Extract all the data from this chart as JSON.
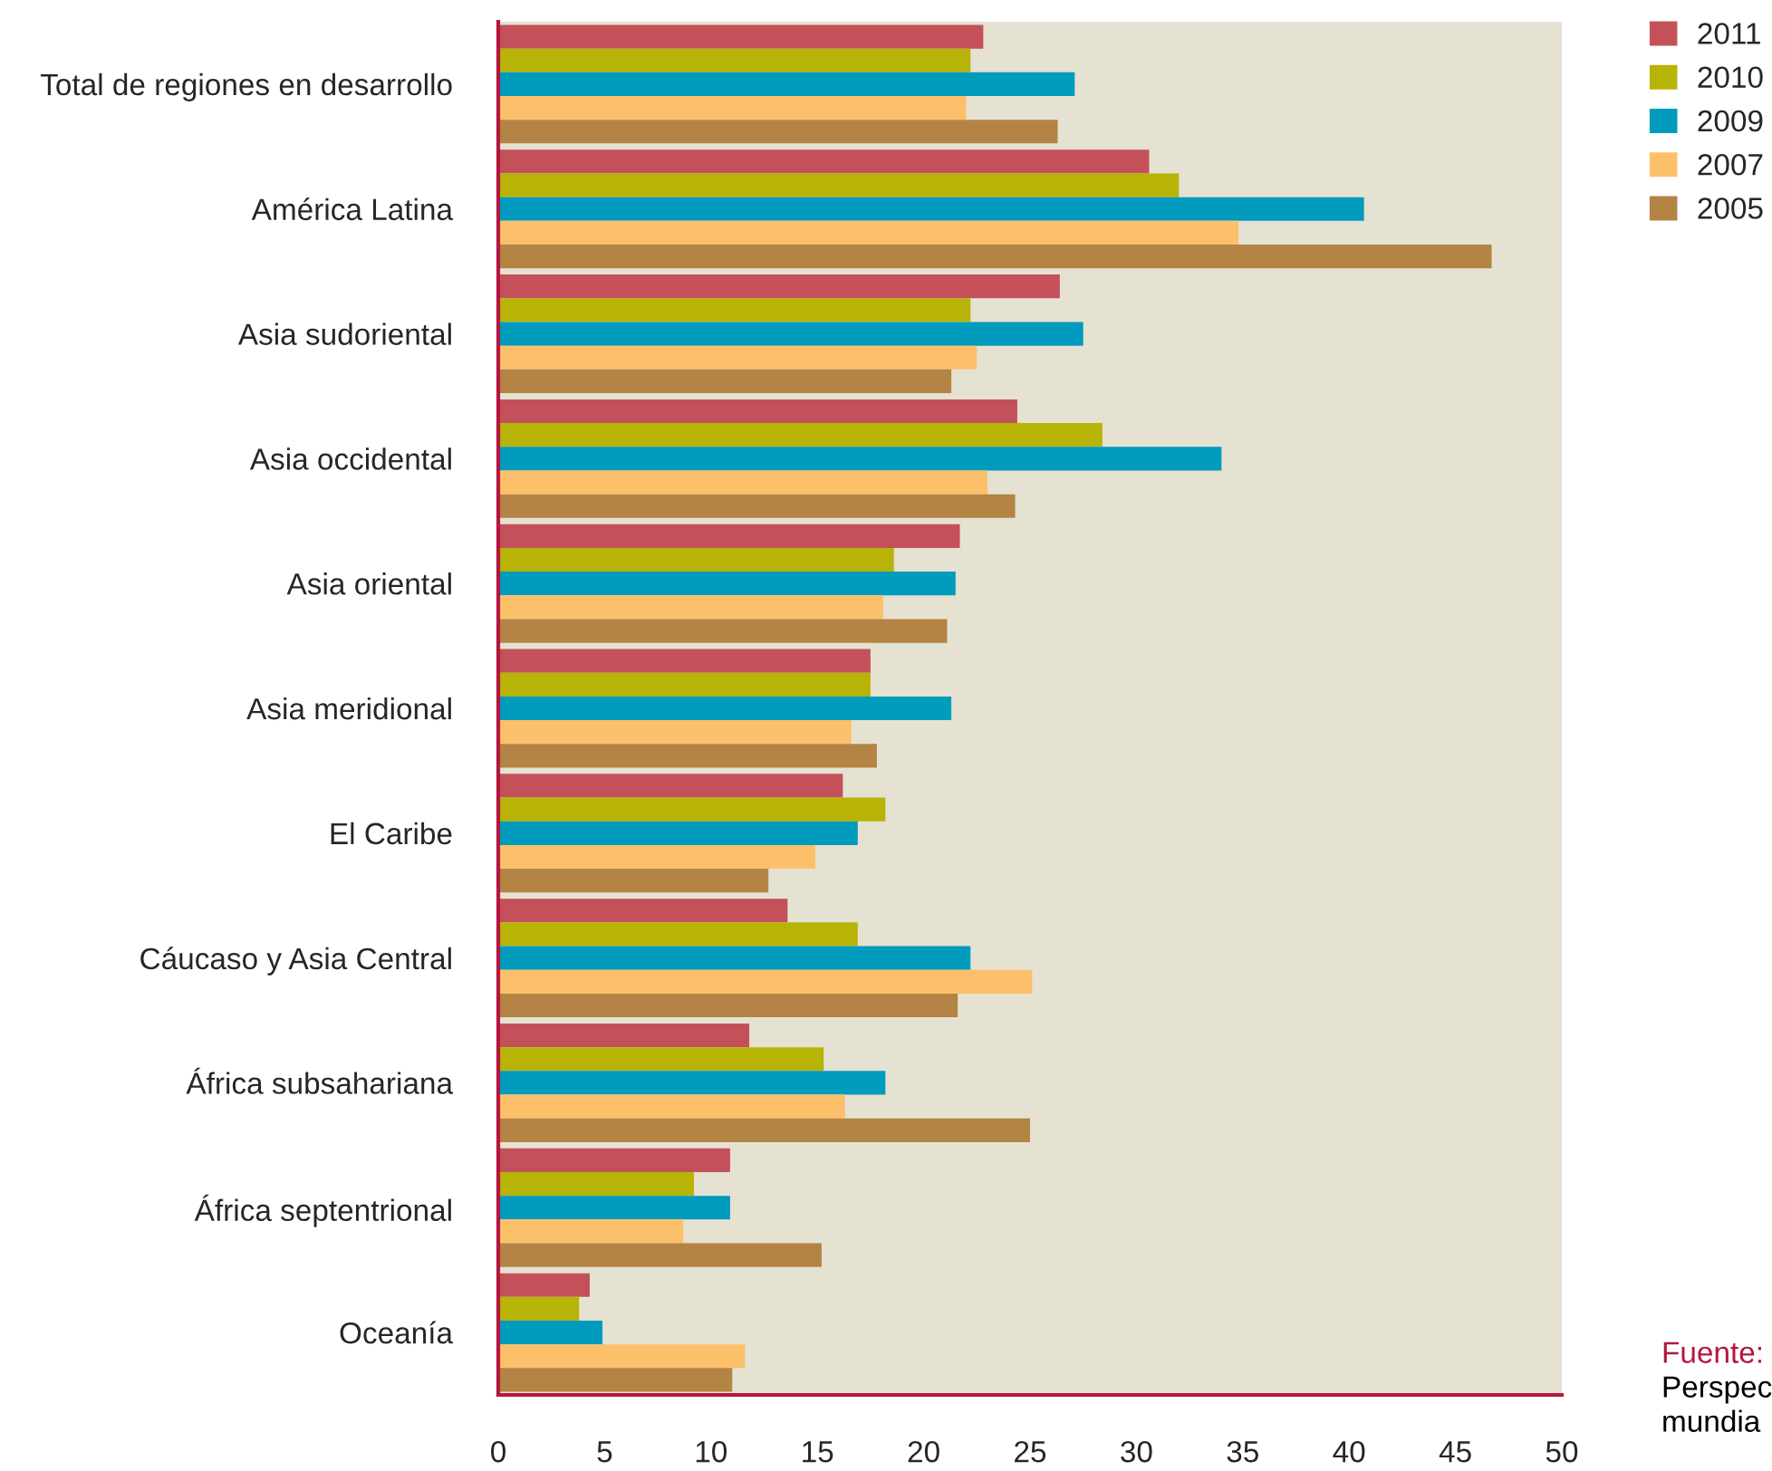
{
  "chart_data": {
    "type": "bar",
    "orientation": "horizontal",
    "categories": [
      "Total de regiones en desarrollo",
      "América Latina",
      "Asia sudoriental",
      "Asia occidental",
      "Asia oriental",
      "Asia meridional",
      "El Caribe",
      "Cáucaso y Asia Central",
      "África subsahariana",
      "África septentrional",
      "Oceanía"
    ],
    "series": [
      {
        "name": "2011",
        "color": "#c4515a",
        "values": [
          22.8,
          30.6,
          26.4,
          24.4,
          21.7,
          17.5,
          16.2,
          13.6,
          11.8,
          10.9,
          4.3
        ]
      },
      {
        "name": "2010",
        "color": "#b8b307",
        "values": [
          22.2,
          32.0,
          22.2,
          28.4,
          18.6,
          17.5,
          18.2,
          16.9,
          15.3,
          9.2,
          3.8
        ]
      },
      {
        "name": "2009",
        "color": "#009bbd",
        "values": [
          27.1,
          40.7,
          27.5,
          34.0,
          21.5,
          21.3,
          16.9,
          22.2,
          18.2,
          10.9,
          4.9
        ]
      },
      {
        "name": "2007",
        "color": "#fdc06a",
        "values": [
          22.0,
          34.8,
          22.5,
          23.0,
          18.1,
          16.6,
          14.9,
          25.1,
          16.3,
          8.7,
          11.6
        ]
      },
      {
        "name": "2005",
        "color": "#b38444",
        "values": [
          26.3,
          46.7,
          21.3,
          24.3,
          21.1,
          17.8,
          12.7,
          21.6,
          25.0,
          15.2,
          11.0
        ]
      }
    ],
    "xlim": [
      0,
      50
    ],
    "xticks": [
      0,
      5,
      10,
      15,
      20,
      25,
      30,
      35,
      40,
      45,
      50
    ],
    "grid": false,
    "legend": "top right",
    "annotations": [
      "Fuente:",
      "Perspec",
      "mundia"
    ]
  }
}
